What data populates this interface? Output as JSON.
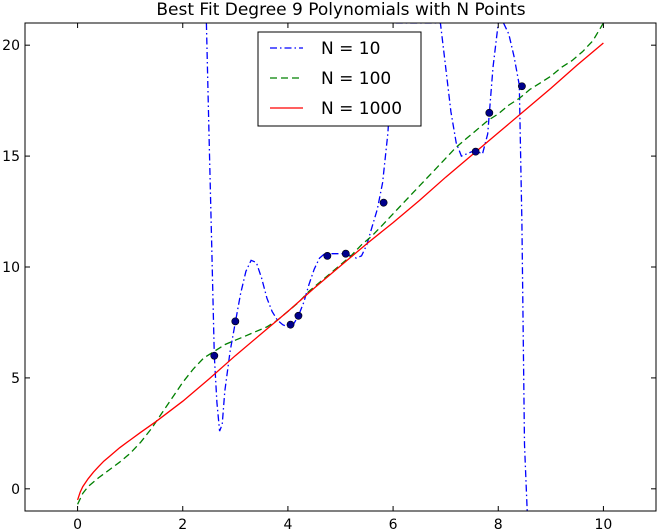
{
  "chart_data": {
    "type": "line",
    "title": "Best Fit Degree 9 Polynomials with N Points",
    "xlabel": "",
    "ylabel": "",
    "xlim": [
      -1,
      11
    ],
    "ylim": [
      -1,
      21
    ],
    "xticks": [
      0,
      2,
      4,
      6,
      8,
      10
    ],
    "yticks": [
      0,
      5,
      10,
      15,
      20
    ],
    "grid": false,
    "legend_position": "top-center",
    "legend": [
      "N = 10",
      "N = 100",
      "N = 1000"
    ],
    "scatter_points": {
      "x": [
        2.6,
        3.0,
        4.05,
        4.2,
        4.75,
        5.1,
        5.82,
        7.57,
        7.83,
        8.45
      ],
      "y": [
        6.0,
        7.55,
        7.4,
        7.8,
        10.5,
        10.6,
        12.9,
        15.2,
        16.95,
        18.15
      ],
      "color": "#00008b"
    },
    "series": [
      {
        "name": "N = 10",
        "style": "dashdot",
        "color": "#0000ff",
        "x": [
          2.45,
          2.5,
          2.55,
          2.6,
          2.65,
          2.7,
          2.75,
          2.8,
          2.9,
          3.0,
          3.1,
          3.2,
          3.3,
          3.4,
          3.5,
          3.6,
          3.7,
          3.8,
          3.9,
          4.0,
          4.1,
          4.2,
          4.3,
          4.4,
          4.5,
          4.6,
          4.7,
          4.8,
          4.9,
          5.0,
          5.1,
          5.2,
          5.3,
          5.4,
          5.5,
          5.6,
          5.7,
          5.8,
          5.9,
          6.0,
          6.05,
          6.9,
          7.0,
          7.1,
          7.2,
          7.3,
          7.4,
          7.5,
          7.6,
          7.7,
          7.8,
          7.9,
          8.0,
          8.1,
          8.2,
          8.3,
          8.4,
          8.45,
          8.5,
          8.55
        ],
        "y": [
          21,
          16,
          11,
          6.0,
          3.9,
          2.6,
          2.9,
          4.4,
          6.2,
          7.5,
          8.8,
          9.8,
          10.3,
          10.2,
          9.5,
          8.6,
          8.0,
          7.6,
          7.4,
          7.3,
          7.4,
          7.8,
          8.4,
          9.2,
          9.9,
          10.4,
          10.6,
          10.6,
          10.6,
          10.6,
          10.6,
          10.5,
          10.4,
          10.5,
          11.0,
          11.8,
          12.6,
          13.8,
          16.0,
          19.5,
          21,
          21,
          19.0,
          17.0,
          15.6,
          15.0,
          15.1,
          15.2,
          15.2,
          15.1,
          16.0,
          19.0,
          21,
          21,
          20.5,
          19.5,
          18.2,
          12.0,
          2.0,
          -1
        ],
        "breaks_after_index": [
          39,
          52
        ]
      },
      {
        "name": "N = 100",
        "style": "dashed",
        "color": "#008000",
        "x": [
          0,
          0.1,
          0.2,
          0.4,
          0.6,
          0.8,
          1.0,
          1.2,
          1.4,
          1.6,
          1.8,
          2.0,
          2.2,
          2.4,
          2.6,
          2.8,
          3.0,
          3.2,
          3.4,
          3.6,
          3.8,
          4.0,
          4.2,
          4.4,
          4.6,
          4.8,
          5.0,
          5.2,
          5.4,
          5.6,
          5.8,
          6.0,
          6.2,
          6.4,
          6.6,
          6.8,
          7.0,
          7.2,
          7.4,
          7.6,
          7.8,
          8.0,
          8.2,
          8.4,
          8.6,
          8.8,
          9.0,
          9.2,
          9.4,
          9.6,
          9.8,
          10.0
        ],
        "y": [
          -0.7,
          -0.2,
          0.1,
          0.5,
          0.85,
          1.2,
          1.6,
          2.1,
          2.7,
          3.4,
          4.1,
          4.8,
          5.4,
          5.9,
          6.2,
          6.5,
          6.7,
          6.9,
          7.1,
          7.3,
          7.6,
          8.0,
          8.4,
          8.9,
          9.3,
          9.7,
          10.1,
          10.5,
          11.0,
          11.4,
          11.9,
          12.4,
          12.9,
          13.4,
          13.9,
          14.4,
          14.9,
          15.4,
          15.8,
          16.2,
          16.6,
          16.9,
          17.3,
          17.6,
          18.0,
          18.3,
          18.6,
          19.0,
          19.3,
          19.7,
          20.2,
          21.0
        ]
      },
      {
        "name": "N = 1000",
        "style": "solid",
        "color": "#ff0000",
        "x": [
          0,
          0.05,
          0.1,
          0.2,
          0.3,
          0.4,
          0.5,
          0.6,
          0.8,
          1.0,
          1.2,
          1.5,
          2.0,
          2.5,
          3.0,
          3.5,
          4.0,
          4.5,
          5.0,
          5.5,
          6.0,
          6.5,
          7.0,
          7.5,
          8.0,
          8.5,
          9.0,
          9.5,
          10.0
        ],
        "y": [
          -0.5,
          -0.15,
          0.1,
          0.45,
          0.75,
          1.0,
          1.25,
          1.45,
          1.85,
          2.2,
          2.55,
          3.05,
          3.95,
          4.95,
          6.0,
          7.0,
          8.0,
          9.05,
          10.05,
          11.05,
          12.0,
          13.0,
          14.05,
          15.05,
          16.05,
          17.05,
          18.05,
          19.1,
          20.1
        ]
      }
    ]
  }
}
